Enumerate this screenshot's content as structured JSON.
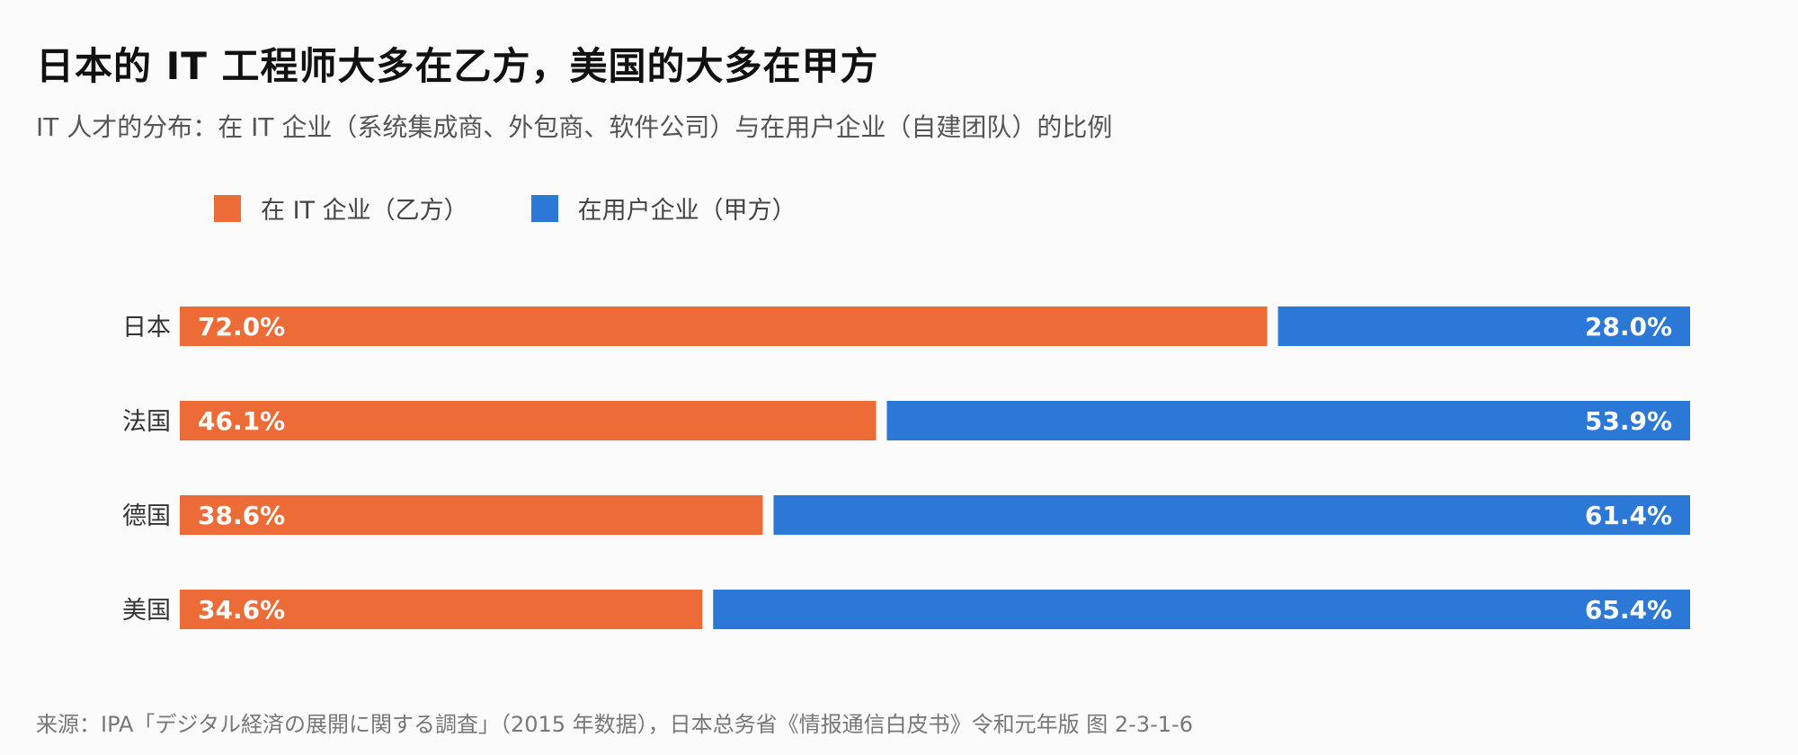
{
  "title": "日本的 IT 工程师大多在乙方，美国的大多在甲方",
  "subtitle": "IT 人才的分布：在 IT 企业（系统集成商、外包商、软件公司）与在用户企业（自建团队）的比例",
  "source": "来源：IPA「デジタル経済の展開に関する調査」（2015 年数据），日本总务省《情报通信白皮书》令和元年版 图 2-3-1-6",
  "colors": {
    "it_firm": "#ec6b36",
    "user_firm": "#2b78d6"
  },
  "chart_data": {
    "type": "bar",
    "orientation": "horizontal",
    "stacked": "100%",
    "categories": [
      "日本",
      "法国",
      "德国",
      "美国"
    ],
    "series": [
      {
        "name": "在 IT 企业（乙方）",
        "values": [
          72.0,
          46.1,
          38.6,
          34.6
        ],
        "labels": [
          "72.0%",
          "46.1%",
          "38.6%",
          "34.6%"
        ]
      },
      {
        "name": "在用户企业（甲方）",
        "values": [
          28.0,
          53.9,
          61.4,
          65.4
        ],
        "labels": [
          "28.0%",
          "53.9%",
          "61.4%",
          "65.4%"
        ]
      }
    ],
    "xlim": [
      0,
      100
    ],
    "grid": false,
    "legend_position": "top-left"
  }
}
